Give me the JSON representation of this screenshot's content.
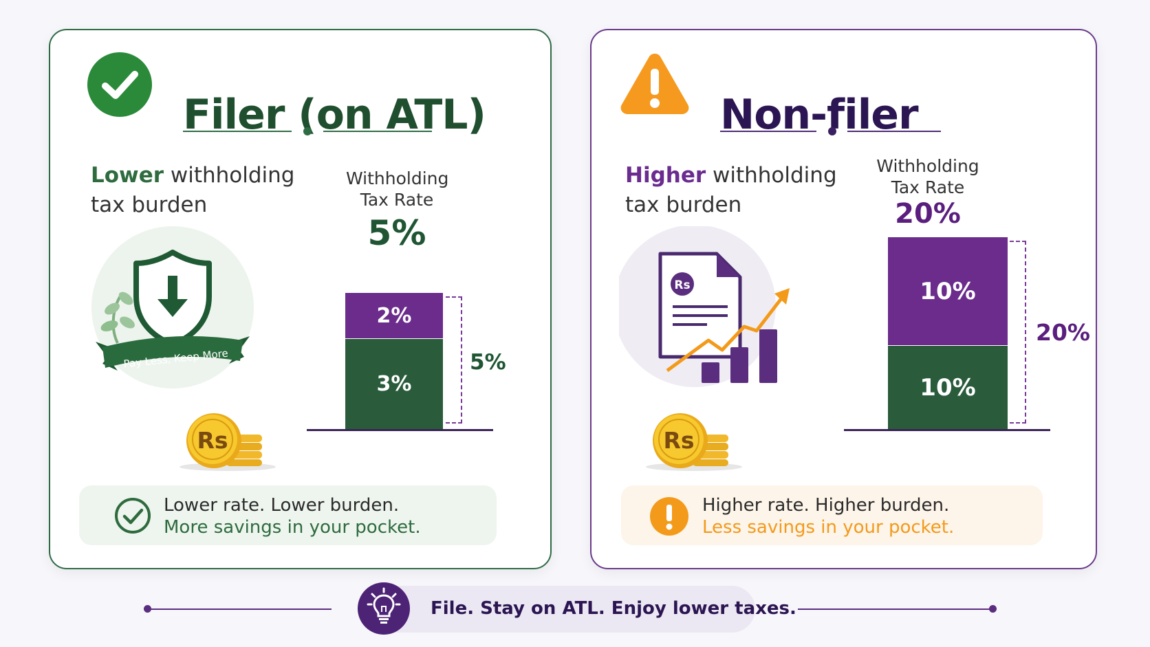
{
  "filer": {
    "title": "Filer (on ATL)",
    "burden_highlight": "Lower",
    "burden_rest_1": " withholding",
    "burden_line2": "tax burden",
    "withholding_label_1": "Withholding",
    "withholding_label_2": "Tax Rate",
    "rate": "5%",
    "badge_text": "Pay Less, Keep More",
    "coin_label": "Rs",
    "bar": {
      "segments": [
        {
          "label": "2%",
          "value": 2,
          "color": "#6b2c8c"
        },
        {
          "label": "3%",
          "value": 3,
          "color": "#2a5c3c"
        }
      ],
      "total_label": "5%"
    },
    "note_line1": "Lower rate. Lower burden.",
    "note_line2": "More savings in your pocket."
  },
  "nonfiler": {
    "title": "Non-filer",
    "burden_highlight": "Higher",
    "burden_rest_1": " withholding",
    "burden_line2": "tax burden",
    "withholding_label_1": "Withholding",
    "withholding_label_2": "Tax Rate",
    "rate": "20%",
    "doc_label": "Rs",
    "coin_label": "Rs",
    "bar": {
      "segments": [
        {
          "label": "10%",
          "value": 10,
          "color": "#6b2c8c"
        },
        {
          "label": "10%",
          "value": 10,
          "color": "#2a5c3c"
        }
      ],
      "total_label": "20%"
    },
    "note_line1": "Higher rate. Higher burden.",
    "note_line2": "Less savings in your pocket."
  },
  "footer": {
    "text": "File. Stay on ATL. Enjoy lower taxes."
  },
  "colors": {
    "green_dark": "#1f4f2f",
    "green": "#2e7d32",
    "purple_dark": "#2b1552",
    "purple": "#6b2c8c",
    "orange": "#f39a1a",
    "gold": "#f5c518"
  },
  "icons": {
    "filer_header": "check-circle-icon",
    "nonfiler_header": "warning-triangle-icon",
    "filer_illustration": "shield-download-icon",
    "nonfiler_illustration": "document-growth-chart-icon",
    "coins": "rupee-coins-icon",
    "filer_note": "check-circle-outline-icon",
    "nonfiler_note": "exclamation-circle-icon",
    "footer": "lightbulb-icon"
  }
}
